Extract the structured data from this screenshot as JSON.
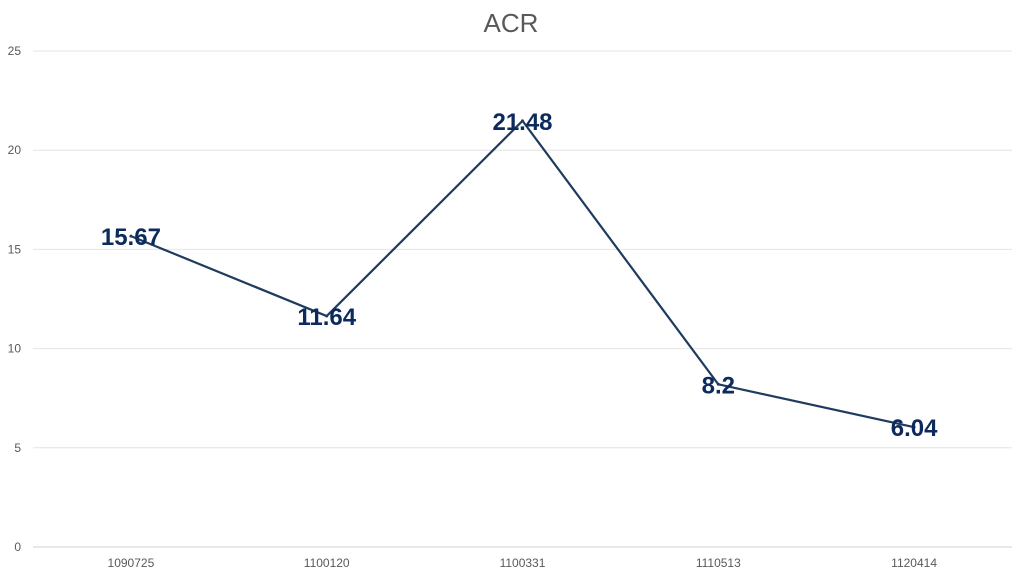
{
  "chart_data": {
    "type": "line",
    "title": "ACR",
    "categories": [
      "1090725",
      "1100120",
      "1100331",
      "1110513",
      "1120414"
    ],
    "series": [
      {
        "values": [
          15.67,
          11.64,
          21.48,
          8.2,
          6.04
        ],
        "color": "#1f3b5f",
        "data_labels": [
          "15.67",
          "11.64",
          "21.48",
          "8.2",
          "6.04"
        ]
      }
    ],
    "y_ticks": [
      "0",
      "5",
      "10",
      "15",
      "20",
      "25"
    ],
    "ylim": [
      0,
      25
    ],
    "grid": true,
    "legend": "none",
    "label_color": "#0d2a5c"
  }
}
